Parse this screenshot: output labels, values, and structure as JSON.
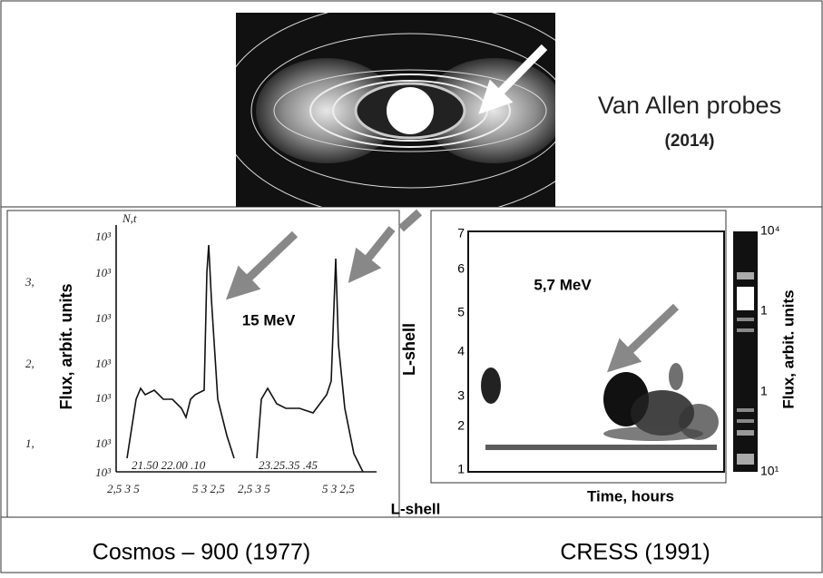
{
  "top": {
    "title": "Van Allen probes",
    "year": "(2014)"
  },
  "left_panel": {
    "y_label": "Flux, arbit. units",
    "x_label": "L-shell",
    "annotation": "15 MeV",
    "caption": "Cosmos – 900 (1977)",
    "corner_label": "N,t",
    "y_ticks": [
      "10³",
      "10³",
      "10³",
      "10³",
      "10³",
      "10³",
      "10³"
    ],
    "y_ticks_outer": [
      "3,",
      "2,",
      "1,"
    ],
    "time_labels": [
      "21.50 22.00 .10",
      "23.25.35 .45"
    ],
    "x_ticks": [
      "2,5 3 5",
      "5 3 2,5",
      "2,5 3 5",
      "5 3 2,5"
    ]
  },
  "right_panel": {
    "y_label": "L-shell",
    "x_label": "Time, hours",
    "annotation": "5,7 MeV",
    "caption": "CRESS (1991)",
    "y_ticks": [
      "7",
      "6",
      "5",
      "4",
      "3",
      "2",
      "1"
    ],
    "colorbar_label": "Flux, arbit. units",
    "colorbar_ticks": [
      "10⁴",
      "1",
      "1",
      "10¹"
    ]
  }
}
